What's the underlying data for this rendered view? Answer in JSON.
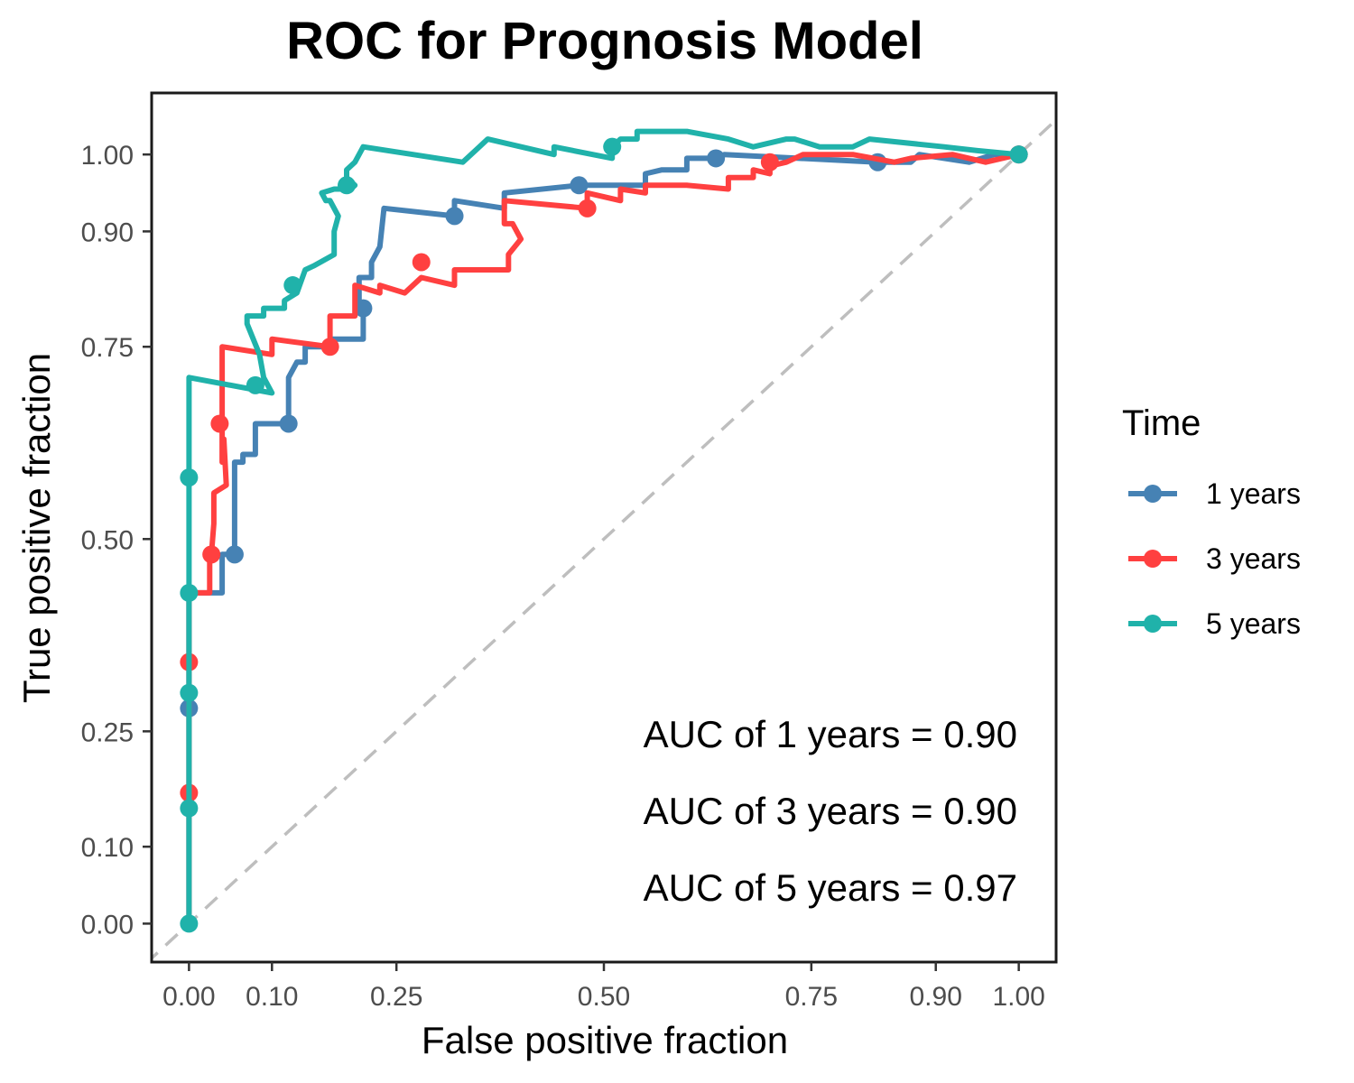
{
  "chart_data": {
    "type": "line",
    "title": "ROC for Prognosis Model",
    "xlabel": "False positive fraction",
    "ylabel": "True positive fraction",
    "xlim": [
      -0.045,
      1.045
    ],
    "ylim": [
      -0.05,
      1.08
    ],
    "x_ticks": [
      0,
      0.1,
      0.25,
      0.5,
      0.75,
      0.9,
      1.0
    ],
    "x_tick_labels": [
      "0.00",
      "0.10",
      "0.25",
      "0.50",
      "0.75",
      "0.90",
      "1.00"
    ],
    "y_ticks": [
      0,
      0.1,
      0.25,
      0.5,
      0.75,
      0.9,
      1.0
    ],
    "y_tick_labels": [
      "0.00",
      "0.10",
      "0.25",
      "0.50",
      "0.75",
      "0.90",
      "1.00"
    ],
    "grid": false,
    "legend": {
      "title": "Time",
      "position": "right"
    },
    "reference_line": {
      "from": [
        0,
        0
      ],
      "to": [
        1,
        1
      ],
      "style": "dashed",
      "color": "#bebebe"
    },
    "annotations": [
      "AUC of 1 years = 0.90",
      "AUC of 3 years = 0.90",
      "AUC of 5 years = 0.97"
    ],
    "series": [
      {
        "name": "1 years",
        "color": "#4682B4",
        "points": [
          [
            0,
            0
          ],
          [
            0,
            0.28
          ],
          [
            0,
            0.43
          ],
          [
            0.04,
            0.43
          ],
          [
            0.04,
            0.48
          ],
          [
            0.055,
            0.48
          ],
          [
            0.055,
            0.6
          ],
          [
            0.065,
            0.6
          ],
          [
            0.065,
            0.61
          ],
          [
            0.08,
            0.61
          ],
          [
            0.08,
            0.65
          ],
          [
            0.12,
            0.65
          ],
          [
            0.12,
            0.71
          ],
          [
            0.13,
            0.73
          ],
          [
            0.14,
            0.73
          ],
          [
            0.14,
            0.75
          ],
          [
            0.17,
            0.75
          ],
          [
            0.17,
            0.76
          ],
          [
            0.21,
            0.76
          ],
          [
            0.21,
            0.79
          ],
          [
            0.205,
            0.8
          ],
          [
            0.205,
            0.84
          ],
          [
            0.22,
            0.84
          ],
          [
            0.22,
            0.86
          ],
          [
            0.23,
            0.88
          ],
          [
            0.235,
            0.93
          ],
          [
            0.32,
            0.92
          ],
          [
            0.32,
            0.94
          ],
          [
            0.38,
            0.93
          ],
          [
            0.38,
            0.95
          ],
          [
            0.47,
            0.96
          ],
          [
            0.47,
            0.96
          ],
          [
            0.55,
            0.96
          ],
          [
            0.55,
            0.975
          ],
          [
            0.57,
            0.98
          ],
          [
            0.6,
            0.98
          ],
          [
            0.6,
            0.995
          ],
          [
            0.64,
            0.995
          ],
          [
            0.645,
            1.0
          ],
          [
            0.83,
            0.99
          ],
          [
            0.85,
            0.99
          ],
          [
            0.87,
            0.99
          ],
          [
            0.88,
            1.0
          ],
          [
            0.94,
            0.99
          ],
          [
            0.97,
            1.0
          ],
          [
            1,
            1
          ]
        ],
        "markers": [
          [
            0,
            0.28
          ],
          [
            0.055,
            0.48
          ],
          [
            0.12,
            0.65
          ],
          [
            0.21,
            0.8
          ],
          [
            0.32,
            0.92
          ],
          [
            0.47,
            0.96
          ],
          [
            0.635,
            0.995
          ],
          [
            0.83,
            0.99
          ],
          [
            1,
            1
          ]
        ]
      },
      {
        "name": "3 years",
        "color": "#FF4040",
        "points": [
          [
            0,
            0
          ],
          [
            0,
            0.17
          ],
          [
            0,
            0.34
          ],
          [
            0,
            0.43
          ],
          [
            0.025,
            0.43
          ],
          [
            0.025,
            0.48
          ],
          [
            0.027,
            0.48
          ],
          [
            0.03,
            0.52
          ],
          [
            0.03,
            0.56
          ],
          [
            0.045,
            0.57
          ],
          [
            0.042,
            0.63
          ],
          [
            0.04,
            0.6
          ],
          [
            0.04,
            0.65
          ],
          [
            0.04,
            0.75
          ],
          [
            0.1,
            0.74
          ],
          [
            0.1,
            0.76
          ],
          [
            0.17,
            0.75
          ],
          [
            0.17,
            0.79
          ],
          [
            0.2,
            0.79
          ],
          [
            0.2,
            0.83
          ],
          [
            0.23,
            0.82
          ],
          [
            0.23,
            0.83
          ],
          [
            0.26,
            0.82
          ],
          [
            0.28,
            0.84
          ],
          [
            0.32,
            0.83
          ],
          [
            0.32,
            0.85
          ],
          [
            0.385,
            0.85
          ],
          [
            0.385,
            0.87
          ],
          [
            0.4,
            0.89
          ],
          [
            0.39,
            0.91
          ],
          [
            0.38,
            0.91
          ],
          [
            0.38,
            0.94
          ],
          [
            0.48,
            0.93
          ],
          [
            0.48,
            0.95
          ],
          [
            0.52,
            0.94
          ],
          [
            0.52,
            0.955
          ],
          [
            0.55,
            0.95
          ],
          [
            0.55,
            0.96
          ],
          [
            0.57,
            0.96
          ],
          [
            0.6,
            0.96
          ],
          [
            0.65,
            0.955
          ],
          [
            0.65,
            0.97
          ],
          [
            0.68,
            0.97
          ],
          [
            0.68,
            0.98
          ],
          [
            0.7,
            0.975
          ],
          [
            0.7,
            0.985
          ],
          [
            0.72,
            0.99
          ],
          [
            0.74,
            1.0
          ],
          [
            0.8,
            1.0
          ],
          [
            0.85,
            0.99
          ],
          [
            0.87,
            0.995
          ],
          [
            0.92,
            1.0
          ],
          [
            0.96,
            0.99
          ],
          [
            1,
            1
          ]
        ],
        "markers": [
          [
            0,
            0.17
          ],
          [
            0,
            0.34
          ],
          [
            0.027,
            0.48
          ],
          [
            0.037,
            0.65
          ],
          [
            0.17,
            0.75
          ],
          [
            0.28,
            0.86
          ],
          [
            0.48,
            0.93
          ],
          [
            0.7,
            0.99
          ],
          [
            1,
            1
          ]
        ]
      },
      {
        "name": "5 years",
        "color": "#20B2AA",
        "points": [
          [
            0,
            0
          ],
          [
            0,
            0.15
          ],
          [
            0,
            0.3
          ],
          [
            0,
            0.43
          ],
          [
            0,
            0.58
          ],
          [
            0,
            0.71
          ],
          [
            0.1,
            0.69
          ],
          [
            0.09,
            0.71
          ],
          [
            0.085,
            0.74
          ],
          [
            0.07,
            0.78
          ],
          [
            0.07,
            0.79
          ],
          [
            0.09,
            0.79
          ],
          [
            0.09,
            0.8
          ],
          [
            0.115,
            0.8
          ],
          [
            0.115,
            0.81
          ],
          [
            0.13,
            0.82
          ],
          [
            0.14,
            0.85
          ],
          [
            0.15,
            0.855
          ],
          [
            0.175,
            0.87
          ],
          [
            0.175,
            0.9
          ],
          [
            0.18,
            0.92
          ],
          [
            0.17,
            0.94
          ],
          [
            0.165,
            0.94
          ],
          [
            0.16,
            0.95
          ],
          [
            0.175,
            0.955
          ],
          [
            0.195,
            0.955
          ],
          [
            0.2,
            0.96
          ],
          [
            0.19,
            0.97
          ],
          [
            0.19,
            0.98
          ],
          [
            0.2,
            0.99
          ],
          [
            0.205,
            1.0
          ],
          [
            0.21,
            1.01
          ],
          [
            0.33,
            0.99
          ],
          [
            0.34,
            1.0
          ],
          [
            0.35,
            1.01
          ],
          [
            0.36,
            1.02
          ],
          [
            0.44,
            1.0
          ],
          [
            0.44,
            1.01
          ],
          [
            0.51,
            0.995
          ],
          [
            0.51,
            1.01
          ],
          [
            0.52,
            1.02
          ],
          [
            0.54,
            1.02
          ],
          [
            0.54,
            1.03
          ],
          [
            0.6,
            1.03
          ],
          [
            0.65,
            1.02
          ],
          [
            0.68,
            1.01
          ],
          [
            0.72,
            1.02
          ],
          [
            0.73,
            1.02
          ],
          [
            0.73,
            1.02
          ],
          [
            0.76,
            1.01
          ],
          [
            0.8,
            1.01
          ],
          [
            0.82,
            1.02
          ],
          [
            0.91,
            1.01
          ],
          [
            0.95,
            1.005
          ],
          [
            1,
            1
          ]
        ],
        "markers": [
          [
            0,
            0.0
          ],
          [
            0,
            0.15
          ],
          [
            0,
            0.3
          ],
          [
            0,
            0.43
          ],
          [
            0,
            0.58
          ],
          [
            0.08,
            0.7
          ],
          [
            0.125,
            0.83
          ],
          [
            0.19,
            0.96
          ],
          [
            0.51,
            1.01
          ],
          [
            1,
            1
          ]
        ]
      }
    ]
  }
}
